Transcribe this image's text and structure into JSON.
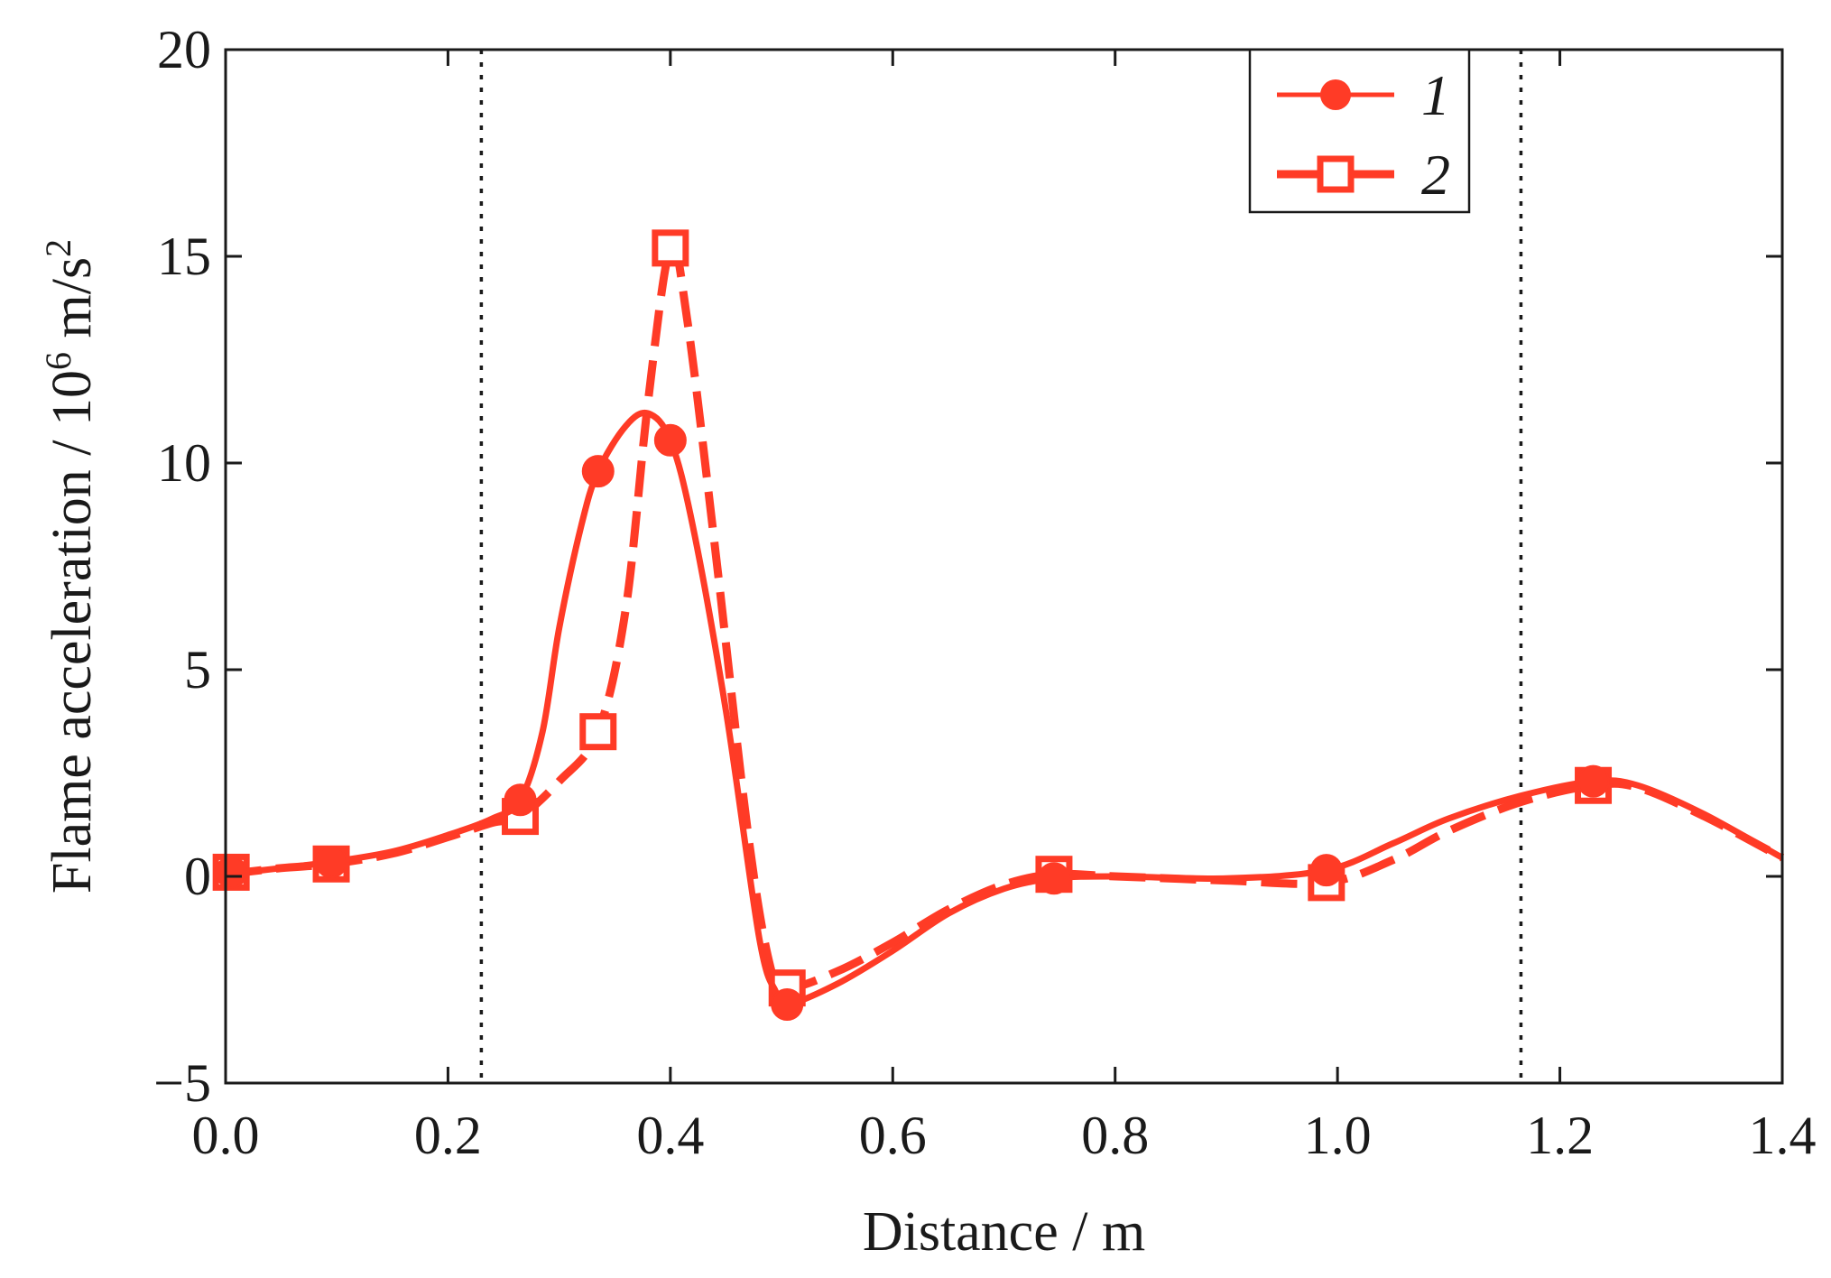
{
  "chart_data": {
    "type": "line",
    "title": "",
    "xlabel": "Distance / m",
    "ylabel": {
      "prefix": "Flame acceleration / 10",
      "exponent": "6",
      "unit": " m/s",
      "unit_exponent": "2"
    },
    "xlim": [
      0,
      1.4
    ],
    "ylim": [
      -5,
      20
    ],
    "x_ticks": [
      "0.0",
      "0.2",
      "0.4",
      "0.6",
      "0.8",
      "1.0",
      "1.2",
      "1.4"
    ],
    "y_ticks": [
      "−5",
      "0",
      "5",
      "10",
      "15",
      "20"
    ],
    "x_tick_values": [
      0,
      0.2,
      0.4,
      0.6,
      0.8,
      1.0,
      1.2,
      1.4
    ],
    "y_tick_values": [
      -5,
      0,
      5,
      10,
      15,
      20
    ],
    "grid": false,
    "legend_position": "top-right",
    "reference_lines_x": [
      0.23,
      1.165
    ],
    "colors": {
      "series": "#ff3b26",
      "axis": "#1a1a1a",
      "reference": "#1a1a1a"
    },
    "series": [
      {
        "name": "1",
        "line_style": "solid",
        "marker": "filled-circle",
        "markers": [
          {
            "x": 0.005,
            "y": 0.1
          },
          {
            "x": 0.095,
            "y": 0.35
          },
          {
            "x": 0.265,
            "y": 1.85
          },
          {
            "x": 0.335,
            "y": 9.8
          },
          {
            "x": 0.4,
            "y": 10.55
          },
          {
            "x": 0.505,
            "y": -3.1
          },
          {
            "x": 0.745,
            "y": -0.05
          },
          {
            "x": 0.99,
            "y": 0.15
          },
          {
            "x": 1.23,
            "y": 2.3
          }
        ],
        "curve": [
          {
            "x": 0.0,
            "y": 0.05
          },
          {
            "x": 0.05,
            "y": 0.2
          },
          {
            "x": 0.095,
            "y": 0.35
          },
          {
            "x": 0.15,
            "y": 0.6
          },
          {
            "x": 0.2,
            "y": 1.0
          },
          {
            "x": 0.24,
            "y": 1.4
          },
          {
            "x": 0.265,
            "y": 1.85
          },
          {
            "x": 0.285,
            "y": 3.5
          },
          {
            "x": 0.3,
            "y": 6.0
          },
          {
            "x": 0.32,
            "y": 8.5
          },
          {
            "x": 0.335,
            "y": 9.8
          },
          {
            "x": 0.36,
            "y": 10.9
          },
          {
            "x": 0.38,
            "y": 11.2
          },
          {
            "x": 0.4,
            "y": 10.55
          },
          {
            "x": 0.42,
            "y": 8.5
          },
          {
            "x": 0.45,
            "y": 4.0
          },
          {
            "x": 0.48,
            "y": -1.5
          },
          {
            "x": 0.495,
            "y": -2.8
          },
          {
            "x": 0.505,
            "y": -3.1
          },
          {
            "x": 0.55,
            "y": -2.6
          },
          {
            "x": 0.6,
            "y": -1.8
          },
          {
            "x": 0.65,
            "y": -0.9
          },
          {
            "x": 0.7,
            "y": -0.3
          },
          {
            "x": 0.745,
            "y": -0.05
          },
          {
            "x": 0.8,
            "y": 0.0
          },
          {
            "x": 0.9,
            "y": -0.05
          },
          {
            "x": 0.99,
            "y": 0.15
          },
          {
            "x": 1.05,
            "y": 0.8
          },
          {
            "x": 1.1,
            "y": 1.4
          },
          {
            "x": 1.165,
            "y": 1.95
          },
          {
            "x": 1.23,
            "y": 2.3
          },
          {
            "x": 1.27,
            "y": 2.2
          },
          {
            "x": 1.33,
            "y": 1.5
          },
          {
            "x": 1.4,
            "y": 0.45
          }
        ]
      },
      {
        "name": "2",
        "line_style": "dashed",
        "marker": "open-square",
        "markers": [
          {
            "x": 0.005,
            "y": 0.1
          },
          {
            "x": 0.095,
            "y": 0.3
          },
          {
            "x": 0.265,
            "y": 1.45
          },
          {
            "x": 0.335,
            "y": 3.5
          },
          {
            "x": 0.4,
            "y": 15.2
          },
          {
            "x": 0.505,
            "y": -2.7
          },
          {
            "x": 0.745,
            "y": 0.05
          },
          {
            "x": 0.99,
            "y": -0.15
          },
          {
            "x": 1.23,
            "y": 2.2
          }
        ],
        "curve": [
          {
            "x": 0.0,
            "y": 0.05
          },
          {
            "x": 0.05,
            "y": 0.2
          },
          {
            "x": 0.095,
            "y": 0.3
          },
          {
            "x": 0.15,
            "y": 0.55
          },
          {
            "x": 0.2,
            "y": 0.95
          },
          {
            "x": 0.24,
            "y": 1.3
          },
          {
            "x": 0.265,
            "y": 1.45
          },
          {
            "x": 0.3,
            "y": 2.3
          },
          {
            "x": 0.335,
            "y": 3.5
          },
          {
            "x": 0.36,
            "y": 6.5
          },
          {
            "x": 0.38,
            "y": 11.5
          },
          {
            "x": 0.4,
            "y": 15.2
          },
          {
            "x": 0.415,
            "y": 13.5
          },
          {
            "x": 0.44,
            "y": 8.0
          },
          {
            "x": 0.47,
            "y": 1.0
          },
          {
            "x": 0.49,
            "y": -2.2
          },
          {
            "x": 0.505,
            "y": -2.7
          },
          {
            "x": 0.55,
            "y": -2.3
          },
          {
            "x": 0.6,
            "y": -1.6
          },
          {
            "x": 0.65,
            "y": -0.8
          },
          {
            "x": 0.7,
            "y": -0.2
          },
          {
            "x": 0.745,
            "y": 0.05
          },
          {
            "x": 0.8,
            "y": 0.0
          },
          {
            "x": 0.9,
            "y": -0.1
          },
          {
            "x": 0.99,
            "y": -0.15
          },
          {
            "x": 1.05,
            "y": 0.4
          },
          {
            "x": 1.1,
            "y": 1.1
          },
          {
            "x": 1.165,
            "y": 1.8
          },
          {
            "x": 1.23,
            "y": 2.2
          },
          {
            "x": 1.27,
            "y": 2.15
          },
          {
            "x": 1.33,
            "y": 1.45
          },
          {
            "x": 1.4,
            "y": 0.45
          }
        ]
      }
    ]
  }
}
